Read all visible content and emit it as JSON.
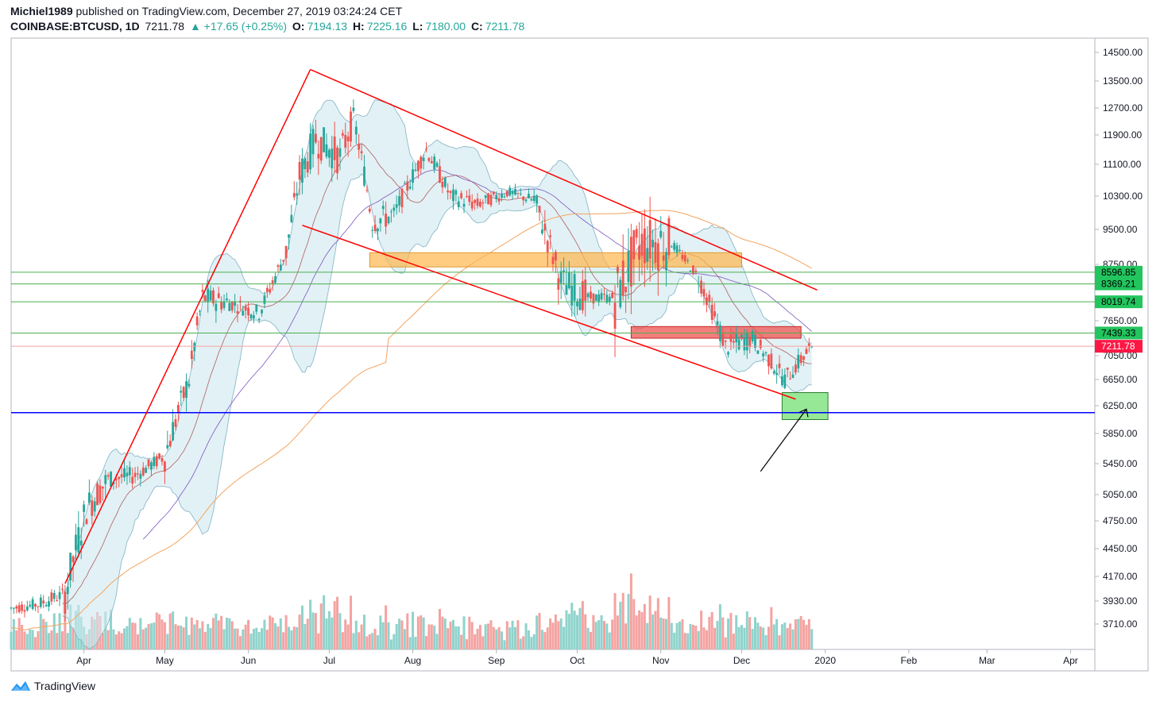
{
  "header": {
    "user": "Michiel1989",
    "published_text": "published on TradingView.com, December 27, 2019 03:24:24 CET",
    "symbol": "COINBASE:BTCUSD, 1D",
    "last_price": "7211.78",
    "change": "▲ +17.65 (+0.25%)",
    "o_label": "O:",
    "o_value": "7194.13",
    "h_label": "H:",
    "h_value": "7225.16",
    "l_label": "L:",
    "l_value": "7180.00",
    "c_label": "C:",
    "c_value": "7211.78"
  },
  "footer": {
    "brand": "TradingView"
  },
  "colors": {
    "up": "#26a69a",
    "down": "#ef5350",
    "trend": "#ff0000",
    "level": "#4caf50",
    "support": "#0000ff",
    "bb_fill": "#cfe8ef",
    "sma200": "#f4a460",
    "ma": "#b06060",
    "ma2": "#7e57c2"
  },
  "chart_data": {
    "type": "candlestick",
    "y_axis_ticks": [
      "14500.00",
      "13500.00",
      "12700.00",
      "11900.00",
      "11100.00",
      "10300.00",
      "9500.00",
      "8750.00",
      "7650.00",
      "7050.00",
      "6650.00",
      "6250.00",
      "5850.00",
      "5450.00",
      "5050.00",
      "4750.00",
      "4450.00",
      "4170.00",
      "3930.00",
      "3710.00"
    ],
    "x_axis_ticks": [
      "Apr",
      "May",
      "Jun",
      "Jul",
      "Aug",
      "Sep",
      "Oct",
      "Nov",
      "Dec",
      "2020",
      "Feb",
      "Mar",
      "Apr"
    ],
    "price_labels": [
      {
        "text": "8596.85",
        "value": 8596.85,
        "type": "level"
      },
      {
        "text": "8369.21",
        "value": 8369.21,
        "type": "level"
      },
      {
        "text": "8019.74",
        "value": 8019.74,
        "type": "level"
      },
      {
        "text": "7439.33",
        "value": 7439.33,
        "type": "level"
      },
      {
        "text": "7211.78",
        "value": 7211.78,
        "type": "last"
      }
    ],
    "support_level": 6150,
    "y_range": [
      3550,
      14800
    ],
    "x_range": [
      "2019-03-05",
      "2020-04-10"
    ],
    "candles_ohlc": [
      [
        "2019-03-05",
        3840,
        3900,
        3820,
        3860
      ],
      [
        "2019-03-15",
        3860,
        3940,
        3840,
        3900
      ],
      [
        "2019-03-25",
        3900,
        4050,
        3880,
        4000
      ],
      [
        "2019-04-02",
        4100,
        5000,
        4080,
        4900
      ],
      [
        "2019-04-10",
        5000,
        5400,
        4950,
        5250
      ],
      [
        "2019-04-20",
        5250,
        5400,
        5100,
        5300
      ],
      [
        "2019-05-01",
        5300,
        5600,
        5250,
        5550
      ],
      [
        "2019-05-10",
        5800,
        6700,
        5700,
        6650
      ],
      [
        "2019-05-15",
        7300,
        8300,
        7200,
        8100
      ],
      [
        "2019-05-25",
        8000,
        8300,
        7700,
        8000
      ],
      [
        "2019-06-05",
        7900,
        8300,
        7600,
        7800
      ],
      [
        "2019-06-15",
        8700,
        9100,
        8600,
        9000
      ],
      [
        "2019-06-20",
        9500,
        11000,
        9400,
        10800
      ],
      [
        "2019-06-26",
        12900,
        13800,
        11200,
        11800
      ],
      [
        "2019-07-05",
        11000,
        12700,
        10300,
        11300
      ],
      [
        "2019-07-10",
        12500,
        13100,
        11800,
        12400
      ],
      [
        "2019-07-17",
        10000,
        10800,
        9200,
        9700
      ],
      [
        "2019-07-25",
        10000,
        10300,
        9500,
        9850
      ],
      [
        "2019-08-06",
        11800,
        12300,
        11200,
        11500
      ],
      [
        "2019-08-15",
        10300,
        10900,
        9900,
        10300
      ],
      [
        "2019-08-25",
        10300,
        10600,
        9900,
        10100
      ],
      [
        "2019-09-05",
        10500,
        10900,
        10300,
        10400
      ],
      [
        "2019-09-15",
        10300,
        10400,
        10000,
        10200
      ],
      [
        "2019-09-25",
        9700,
        9900,
        8200,
        8400
      ],
      [
        "2019-10-05",
        8150,
        8300,
        7900,
        8100
      ],
      [
        "2019-10-15",
        8300,
        8450,
        8000,
        8100
      ],
      [
        "2019-10-25",
        7400,
        10500,
        7300,
        9250
      ],
      [
        "2019-11-05",
        9300,
        9400,
        9100,
        9200
      ],
      [
        "2019-11-15",
        8700,
        8800,
        8400,
        8500
      ],
      [
        "2019-11-25",
        7100,
        7400,
        6550,
        7200
      ],
      [
        "2019-12-05",
        7200,
        7500,
        7100,
        7350
      ],
      [
        "2019-12-17",
        6950,
        7100,
        6450,
        6650
      ],
      [
        "2019-12-27",
        7194.13,
        7225.16,
        7180.0,
        7211.78
      ]
    ]
  }
}
